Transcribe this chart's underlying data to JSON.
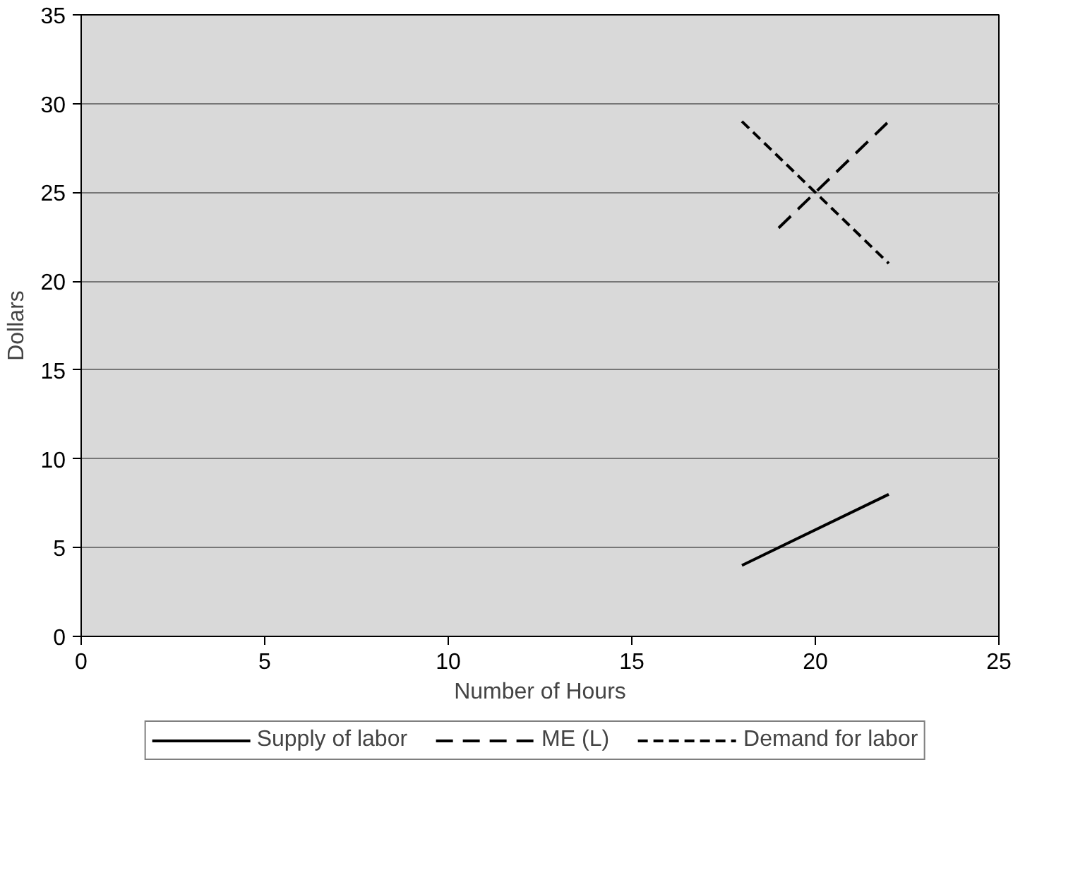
{
  "chart_data": {
    "type": "line",
    "xlabel": "Number of Hours",
    "ylabel": "Dollars",
    "xlim": [
      0,
      25
    ],
    "ylim": [
      0,
      35
    ],
    "xticks": [
      0,
      5,
      10,
      15,
      20,
      25
    ],
    "yticks": [
      0,
      5,
      10,
      15,
      20,
      25,
      30,
      35
    ],
    "grid": "y",
    "legend": "bottom",
    "marker": "none",
    "series": [
      {
        "name": "Supply of labor",
        "color": "#000000",
        "line_style": "solid",
        "x": [
          18,
          22
        ],
        "values": [
          4,
          8
        ]
      },
      {
        "name": "ME (L)",
        "color": "#000000",
        "line_style": "dashed",
        "x": [
          19,
          22
        ],
        "values": [
          23,
          29
        ]
      },
      {
        "name": "Demand for labor",
        "color": "#000000",
        "line_style": "dotted",
        "x": [
          18,
          22
        ],
        "values": [
          29,
          21
        ]
      }
    ]
  }
}
